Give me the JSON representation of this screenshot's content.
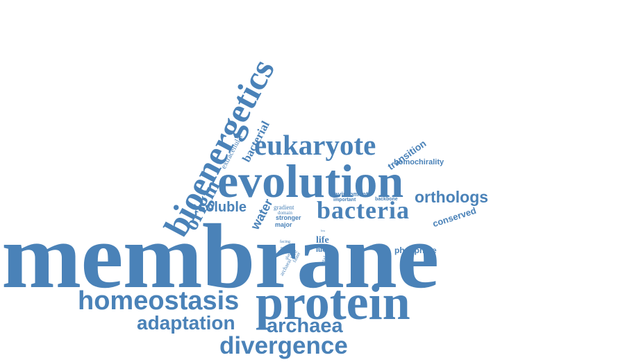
{
  "colors": {
    "word": "#4a82b8",
    "background": "#ffffff"
  },
  "words": {
    "membrane": "membrane",
    "bioenergetics": "bioenergetics",
    "evolution": "evolution",
    "protein": "protein",
    "eukaryote": "eukaryote",
    "bacteria": "bacteria",
    "homeostasis": "homeostasis",
    "divergence": "divergence",
    "adaptation": "adaptation",
    "archaea": "archaea",
    "origin": "origin",
    "orthologs": "orthologs",
    "soluble": "soluble",
    "water": "water",
    "bacterial": "bacterial",
    "extracellular": "extracellular",
    "transition": "transition",
    "homochirality": "homochirality",
    "conserved": "conserved",
    "phosphate": "phosphate",
    "environment": "environment",
    "important": "important",
    "backbone": "backbone",
    "gradient": "gradient",
    "domain": "domain",
    "stronger": "stronger",
    "major": "major",
    "life": "life",
    "luca": "luca",
    "share": "share",
    "tree": "tree",
    "facing": "facing",
    "point": "point",
    "catalysis": "catalysis",
    "archaeal": "archaeal",
    "faster": "faster",
    "loss": "loss"
  }
}
